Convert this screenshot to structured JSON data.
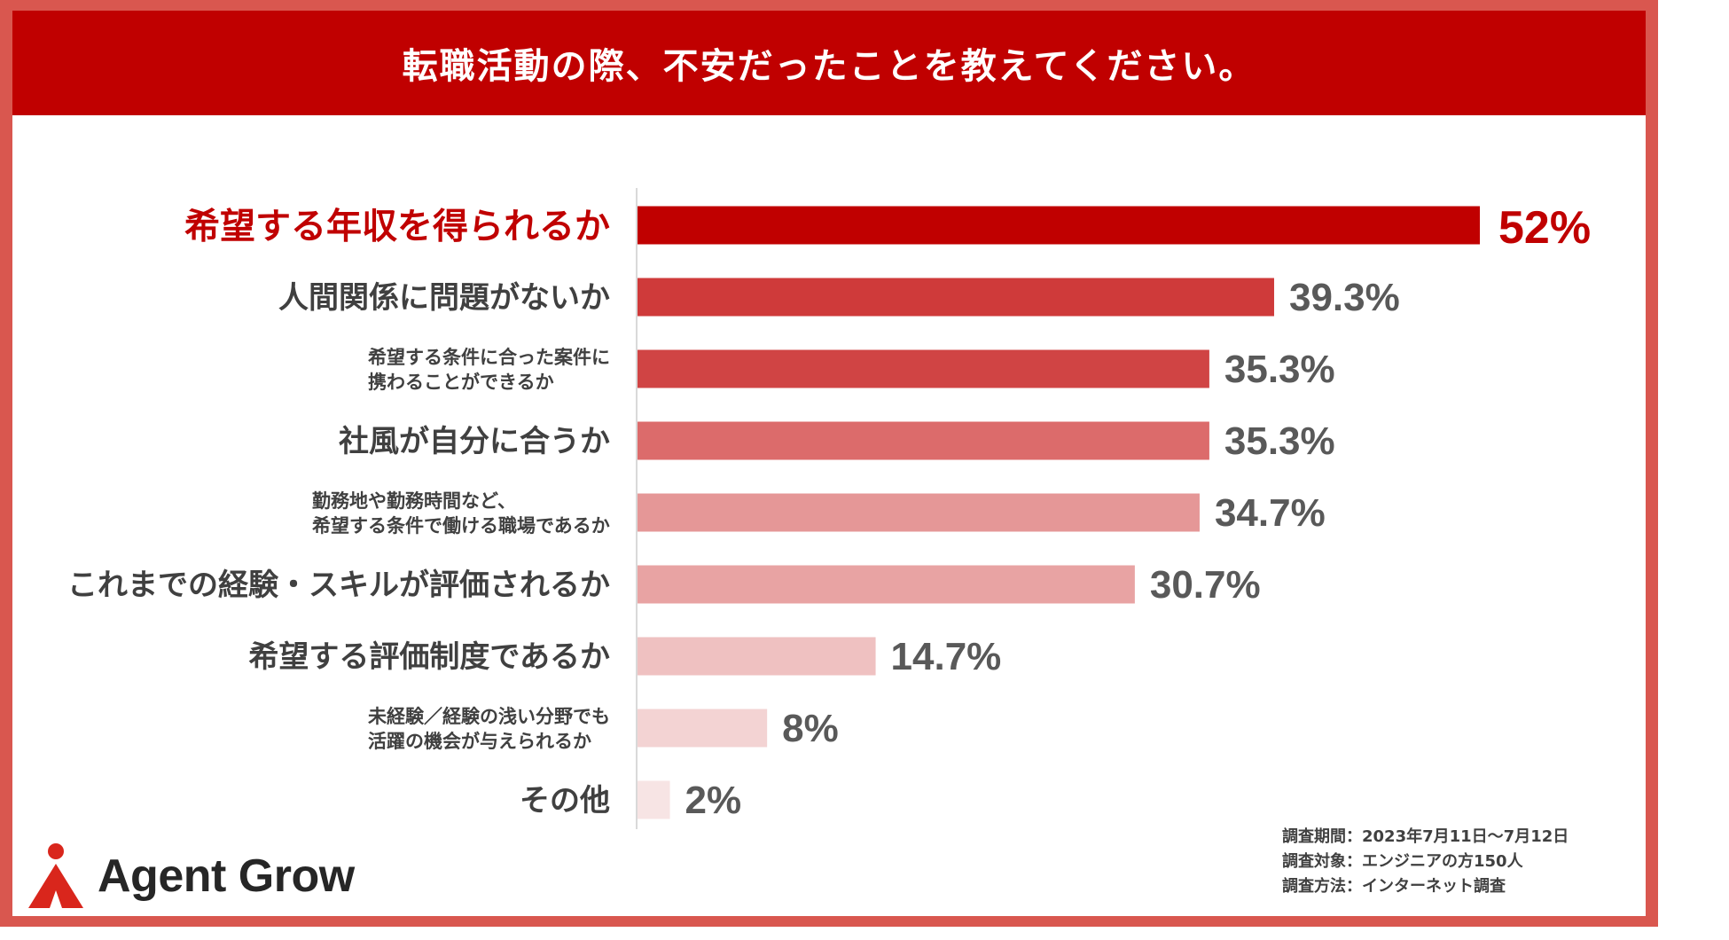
{
  "header": {
    "title": "転職活動の際、不安だったことを教えてください。"
  },
  "chart_data": {
    "type": "bar",
    "orientation": "horizontal",
    "title": "転職活動の際、不安だったことを教えてください。",
    "unit": "%",
    "xlim": [
      0,
      52
    ],
    "categories": [
      "希望する年収を得られるか",
      "人間関係に問題がないか",
      "希望する条件に合った案件に\n携わることができるか",
      "社風が自分に合うか",
      "勤務地や勤務時間など、\n希望する条件で働ける職場であるか",
      "これまでの経験・スキルが評価されるか",
      "希望する評価制度であるか",
      "未経験／経験の浅い分野でも\n活躍の機会が与えられるか",
      "その他"
    ],
    "values": [
      52,
      39.3,
      35.3,
      35.3,
      34.7,
      30.7,
      14.7,
      8,
      2
    ],
    "value_labels": [
      "52%",
      "39.3%",
      "35.3%",
      "35.3%",
      "34.7%",
      "30.7%",
      "14.7%",
      "8%",
      "2%"
    ],
    "bar_colors": [
      "#c00000",
      "#cf3a3a",
      "#d04444",
      "#dc6b6b",
      "#e59797",
      "#e8a3a3",
      "#efc1c1",
      "#f3d3d3",
      "#f7e4e4"
    ]
  },
  "footnote": {
    "period": "調査期間：2023年7月11日〜7月12日",
    "target": "調査対象：エンジニアの方150人",
    "method": "調査方法：インターネット調査"
  },
  "logo": {
    "text": "Agent Grow",
    "icon": "agent-grow-logo-icon",
    "accent_color": "#d9261c"
  }
}
